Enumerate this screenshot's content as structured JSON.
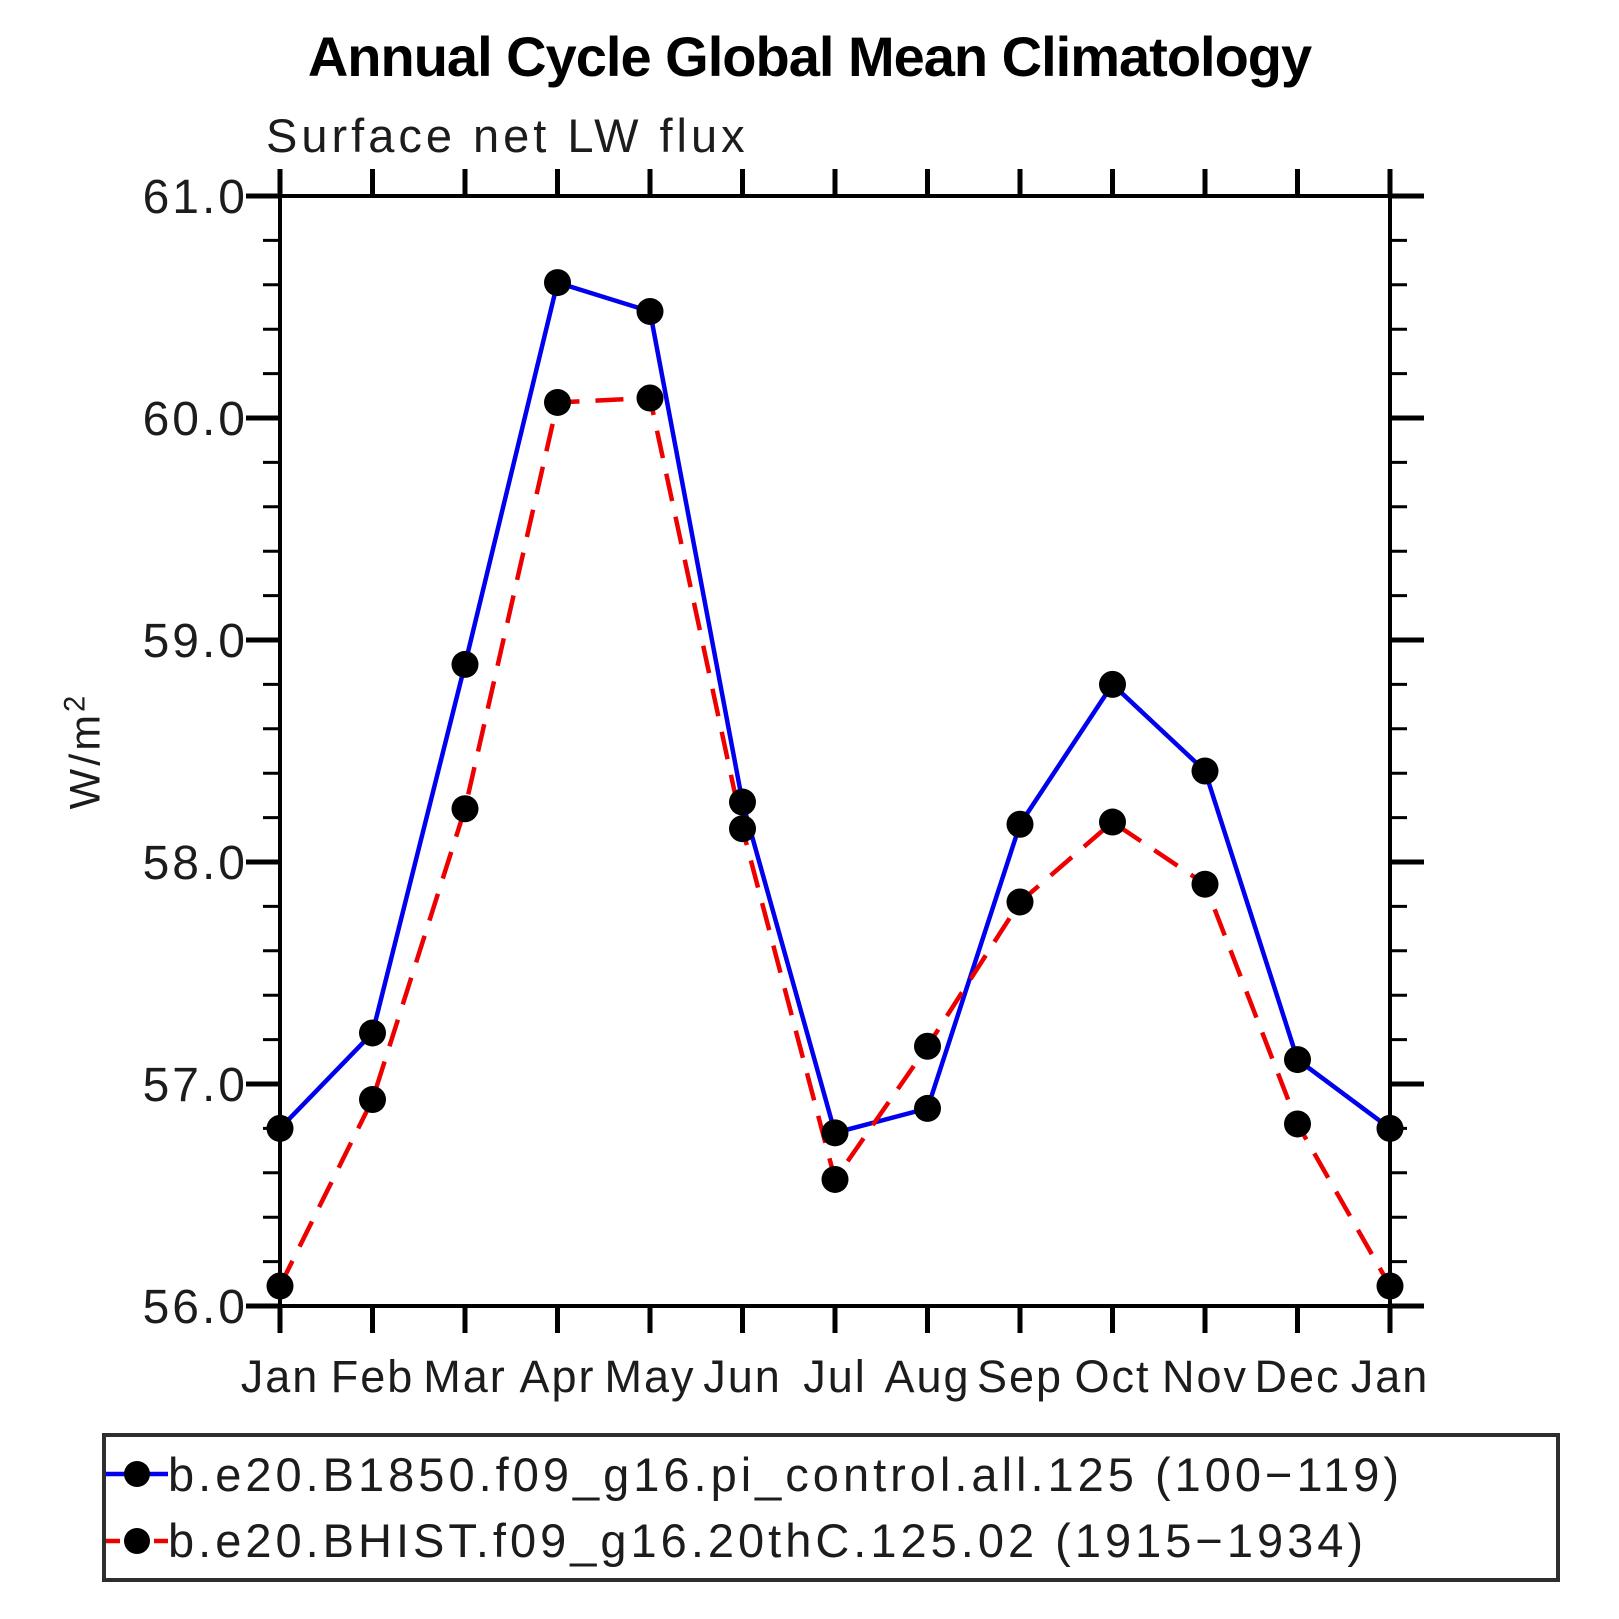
{
  "chart_data": {
    "type": "line",
    "title": "Annual Cycle Global Mean Climatology",
    "subtitle": "Surface net LW flux",
    "ylabel": "W/m²",
    "ylabel_parts": {
      "base": "W/m",
      "exp": "2"
    },
    "categories": [
      "Jan",
      "Feb",
      "Mar",
      "Apr",
      "May",
      "Jun",
      "Jul",
      "Aug",
      "Sep",
      "Oct",
      "Nov",
      "Dec",
      "Jan"
    ],
    "series": [
      {
        "name": "b.e20.B1850.f09_g16.pi_control.all.125 (100−119)",
        "color": "#0000ee",
        "line_style": "solid",
        "values": [
          56.8,
          57.23,
          58.89,
          60.61,
          60.48,
          58.27,
          56.78,
          56.89,
          58.17,
          58.8,
          58.41,
          57.11,
          56.8
        ]
      },
      {
        "name": "b.e20.BHIST.f09_g16.20thC.125.02 (1915−1934)",
        "color": "#ee0000",
        "line_style": "dashed",
        "values": [
          56.09,
          56.93,
          58.24,
          60.07,
          60.09,
          58.15,
          56.57,
          57.17,
          57.82,
          58.18,
          57.9,
          56.82,
          56.09
        ]
      }
    ],
    "ylim": [
      56.0,
      61.0
    ],
    "y_tick_labels": [
      "56.0",
      "57.0",
      "58.0",
      "59.0",
      "60.0",
      "61.0"
    ],
    "y_major_step": 1.0,
    "y_minor_step": 0.2,
    "marker": "filled-circle",
    "marker_color": "#000000",
    "grid": false,
    "legend_position": "bottom"
  }
}
